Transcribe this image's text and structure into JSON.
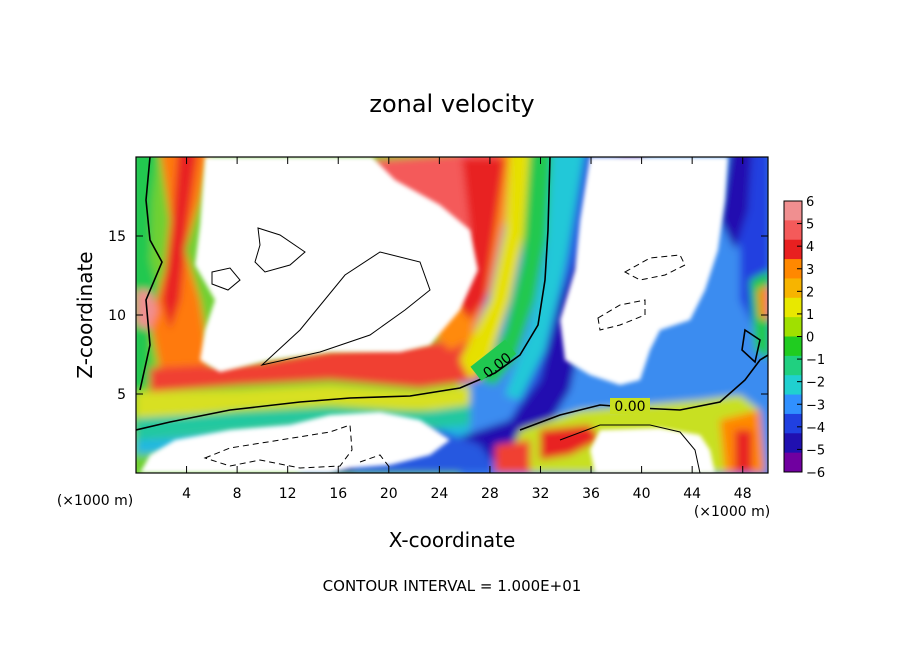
{
  "chart_data": {
    "type": "heatmap",
    "title": "zonal velocity",
    "xlabel": "X-coordinate",
    "ylabel": "Z-coordinate",
    "x_unit": "(×1000 m)",
    "x_unit_right": "(×1000 m)",
    "xlim": [
      0,
      50
    ],
    "ylim": [
      0,
      20
    ],
    "x_ticks": [
      4,
      8,
      12,
      16,
      20,
      24,
      28,
      32,
      36,
      40,
      44,
      48
    ],
    "y_ticks": [
      5,
      10,
      15
    ],
    "colorbar": {
      "ticks": [
        6,
        5,
        4,
        3,
        2,
        1,
        0,
        -1,
        -2,
        -3,
        -4,
        -5,
        -6
      ],
      "tick_labels": [
        "6",
        "5",
        "4",
        "3",
        "2",
        "1",
        "0",
        "−1",
        "−2",
        "−3",
        "−4",
        "−5",
        "−6"
      ],
      "range": [
        -6,
        6
      ],
      "colors": [
        "#f08f90",
        "#f45a5a",
        "#e82020",
        "#ff8800",
        "#f7b400",
        "#e8e800",
        "#a0e000",
        "#20cc20",
        "#20d080",
        "#20d0d0",
        "#3090ff",
        "#2040e0",
        "#2010b0",
        "#7000a0"
      ]
    },
    "contour_labels": [
      "0.00",
      "0.00"
    ],
    "note": "CONTOUR INTERVAL = 1.000E+01",
    "colors": {
      "masked": "#ffffff",
      "frame": "#000000"
    }
  }
}
